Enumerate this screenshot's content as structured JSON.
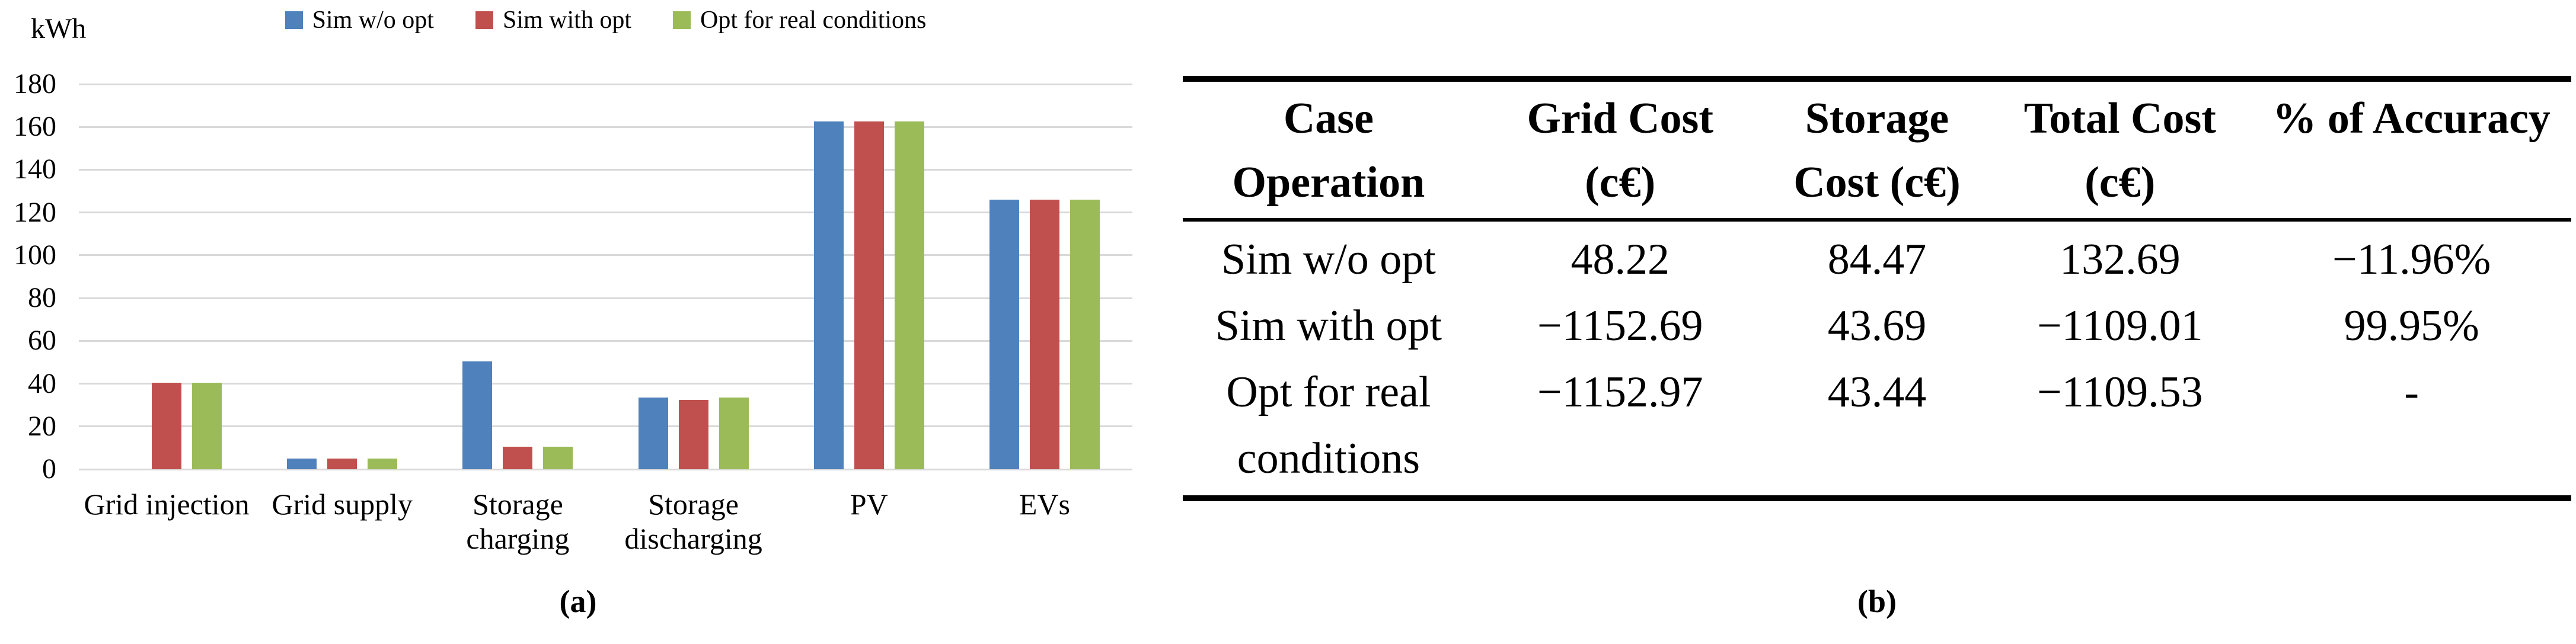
{
  "captions": {
    "a": "(a)",
    "b": "(b)"
  },
  "chart_data": {
    "type": "bar",
    "title": "",
    "xlabel": "",
    "ylabel": "kWh",
    "ylim": [
      0,
      180
    ],
    "ytick_step": 20,
    "grid": true,
    "gridline_color": "#D9D9D9",
    "legend_position": "top",
    "categories": [
      "Grid injection",
      "Grid supply",
      "Storage charging",
      "Storage discharging",
      "PV",
      "EVs"
    ],
    "series": [
      {
        "name": "Sim w/o opt",
        "color": "#4F81BD",
        "values": [
          0,
          5,
          50.5,
          33.5,
          162.5,
          126
        ]
      },
      {
        "name": "Sim with opt",
        "color": "#C0504D",
        "values": [
          40.5,
          5,
          10.5,
          32.5,
          162.5,
          126
        ]
      },
      {
        "name": "Opt for real conditions",
        "color": "#9BBB59",
        "values": [
          40.5,
          5,
          10.5,
          33.5,
          162.5,
          126
        ]
      }
    ]
  },
  "table": {
    "headers": [
      {
        "line1": "Case",
        "line2": "Operation"
      },
      {
        "line1": "Grid Cost",
        "line2": "(c€)"
      },
      {
        "line1": "Storage",
        "line2": "Cost (c€)"
      },
      {
        "line1": "Total Cost",
        "line2": "(c€)"
      },
      {
        "line1": "% of Accuracy",
        "line2": ""
      }
    ],
    "rows": [
      {
        "case_line1": "Sim w/o opt",
        "case_line2": "",
        "grid_cost": "48.22",
        "storage_cost": "84.47",
        "total_cost": "132.69",
        "accuracy": "−11.96%"
      },
      {
        "case_line1": "Sim with opt",
        "case_line2": "",
        "grid_cost": "−1152.69",
        "storage_cost": "43.69",
        "total_cost": "−1109.01",
        "accuracy": "99.95%"
      },
      {
        "case_line1": "Opt for real",
        "case_line2": "conditions",
        "grid_cost": "−1152.97",
        "storage_cost": "43.44",
        "total_cost": "−1109.53",
        "accuracy": "-"
      }
    ]
  }
}
